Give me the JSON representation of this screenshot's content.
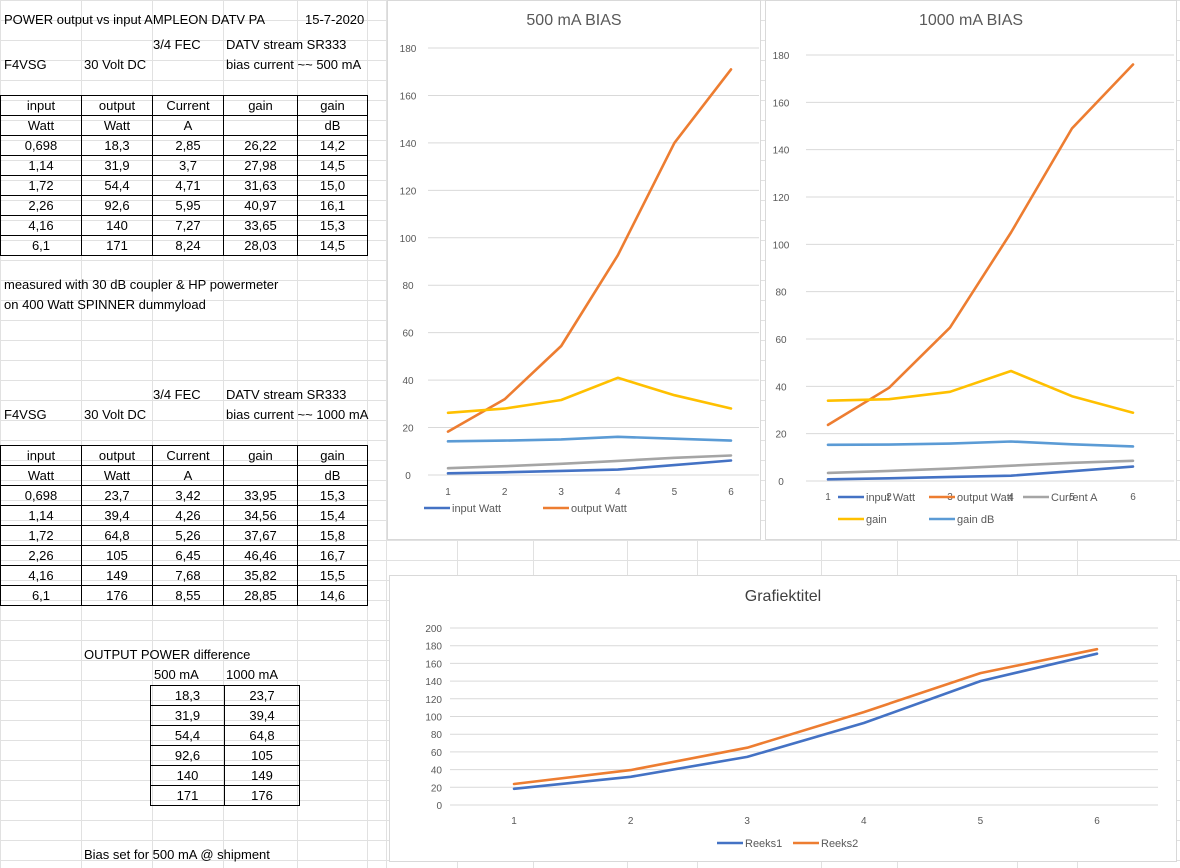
{
  "sheet": {
    "title": "POWER output vs input AMPLEON DATV PA",
    "date": "15-7-2020",
    "section1": {
      "fec": "3/4 FEC",
      "stream": "DATV stream  SR333",
      "call": "F4VSG",
      "supply": "30 Volt DC",
      "bias": "bias current ~~ 500 mA",
      "table": {
        "header1": [
          "input",
          "output",
          "Current",
          "gain",
          "gain"
        ],
        "header2": [
          "Watt",
          "Watt",
          "A",
          "",
          "dB"
        ],
        "rows": [
          [
            "0,698",
            "18,3",
            "2,85",
            "26,22",
            "14,2"
          ],
          [
            "1,14",
            "31,9",
            "3,7",
            "27,98",
            "14,5"
          ],
          [
            "1,72",
            "54,4",
            "4,71",
            "31,63",
            "15,0"
          ],
          [
            "2,26",
            "92,6",
            "5,95",
            "40,97",
            "16,1"
          ],
          [
            "4,16",
            "140",
            "7,27",
            "33,65",
            "15,3"
          ],
          [
            "6,1",
            "171",
            "8,24",
            "28,03",
            "14,5"
          ]
        ]
      }
    },
    "note1": "measured with 30 dB coupler & HP powermeter",
    "note2": "on 400 Watt SPINNER dummyload",
    "section2": {
      "fec": "3/4 FEC",
      "stream": "DATV stream  SR333",
      "call": "F4VSG",
      "supply": "30 Volt DC",
      "bias": "bias current ~~ 1000 mA",
      "table": {
        "header1": [
          "input",
          "output",
          "Current",
          "gain",
          "gain"
        ],
        "header2": [
          "Watt",
          "Watt",
          "A",
          "",
          "dB"
        ],
        "rows": [
          [
            "0,698",
            "23,7",
            "3,42",
            "33,95",
            "15,3"
          ],
          [
            "1,14",
            "39,4",
            "4,26",
            "34,56",
            "15,4"
          ],
          [
            "1,72",
            "64,8",
            "5,26",
            "37,67",
            "15,8"
          ],
          [
            "2,26",
            "105",
            "6,45",
            "46,46",
            "16,7"
          ],
          [
            "4,16",
            "149",
            "7,68",
            "35,82",
            "15,5"
          ],
          [
            "6,1",
            "176",
            "8,55",
            "28,85",
            "14,6"
          ]
        ]
      }
    },
    "diff": {
      "title": "OUTPUT POWER difference",
      "headers": [
        "500 mA",
        "1000 mA"
      ],
      "rows": [
        [
          "18,3",
          "23,7"
        ],
        [
          "31,9",
          "39,4"
        ],
        [
          "54,4",
          "64,8"
        ],
        [
          "92,6",
          "105"
        ],
        [
          "140",
          "149"
        ],
        [
          "171",
          "176"
        ]
      ]
    },
    "footer_note": "Bias set for 500 mA @ shipment"
  },
  "colors": {
    "input": "#4472C4",
    "output": "#ED7D31",
    "current": "#A5A5A5",
    "gain": "#FFC000",
    "gain_db": "#5B9BD5",
    "grid": "#d9d9d9",
    "axis_text": "#595959"
  },
  "chart_data": [
    {
      "type": "line",
      "title": "500 mA BIAS",
      "categories": [
        "1",
        "2",
        "3",
        "4",
        "5",
        "6"
      ],
      "ylim": [
        0,
        180
      ],
      "ytick_step": 20,
      "grid": true,
      "legend_position": "bottom",
      "series": [
        {
          "name": "input Watt",
          "color": "#4472C4",
          "values": [
            0.698,
            1.14,
            1.72,
            2.26,
            4.16,
            6.1
          ]
        },
        {
          "name": "output Watt",
          "color": "#ED7D31",
          "values": [
            18.3,
            31.9,
            54.4,
            92.6,
            140,
            171
          ]
        },
        {
          "color": "#A5A5A5",
          "values": [
            2.85,
            3.7,
            4.71,
            5.95,
            7.27,
            8.24
          ]
        },
        {
          "color": "#FFC000",
          "values": [
            26.22,
            27.98,
            31.63,
            40.97,
            33.65,
            28.03
          ]
        },
        {
          "color": "#5B9BD5",
          "values": [
            14.2,
            14.5,
            15.0,
            16.1,
            15.3,
            14.5
          ]
        }
      ]
    },
    {
      "type": "line",
      "title": "1000 mA BIAS",
      "categories": [
        "1",
        "2",
        "3",
        "4",
        "5",
        "6"
      ],
      "ylim": [
        0,
        180
      ],
      "ytick_step": 20,
      "grid": true,
      "legend_position": "bottom",
      "series": [
        {
          "name": "input Watt",
          "color": "#4472C4",
          "values": [
            0.698,
            1.14,
            1.72,
            2.26,
            4.16,
            6.1
          ]
        },
        {
          "name": "output Watt",
          "color": "#ED7D31",
          "values": [
            23.7,
            39.4,
            64.8,
            105,
            149,
            176
          ]
        },
        {
          "name": "Current A",
          "color": "#A5A5A5",
          "values": [
            3.42,
            4.26,
            5.26,
            6.45,
            7.68,
            8.55
          ]
        },
        {
          "name": "gain",
          "color": "#FFC000",
          "values": [
            33.95,
            34.56,
            37.67,
            46.46,
            35.82,
            28.85
          ]
        },
        {
          "name": "gain dB",
          "color": "#5B9BD5",
          "values": [
            15.3,
            15.4,
            15.8,
            16.7,
            15.5,
            14.6
          ]
        }
      ]
    },
    {
      "type": "line",
      "title": "Grafiektitel",
      "categories": [
        "1",
        "2",
        "3",
        "4",
        "5",
        "6"
      ],
      "ylim": [
        0,
        200
      ],
      "ytick_step": 20,
      "grid": true,
      "legend_position": "bottom",
      "series": [
        {
          "name": "Reeks1",
          "color": "#4472C4",
          "values": [
            18.3,
            31.9,
            54.4,
            92.6,
            140,
            171
          ]
        },
        {
          "name": "Reeks2",
          "color": "#ED7D31",
          "values": [
            23.7,
            39.4,
            64.8,
            105,
            149,
            176
          ]
        }
      ]
    }
  ]
}
